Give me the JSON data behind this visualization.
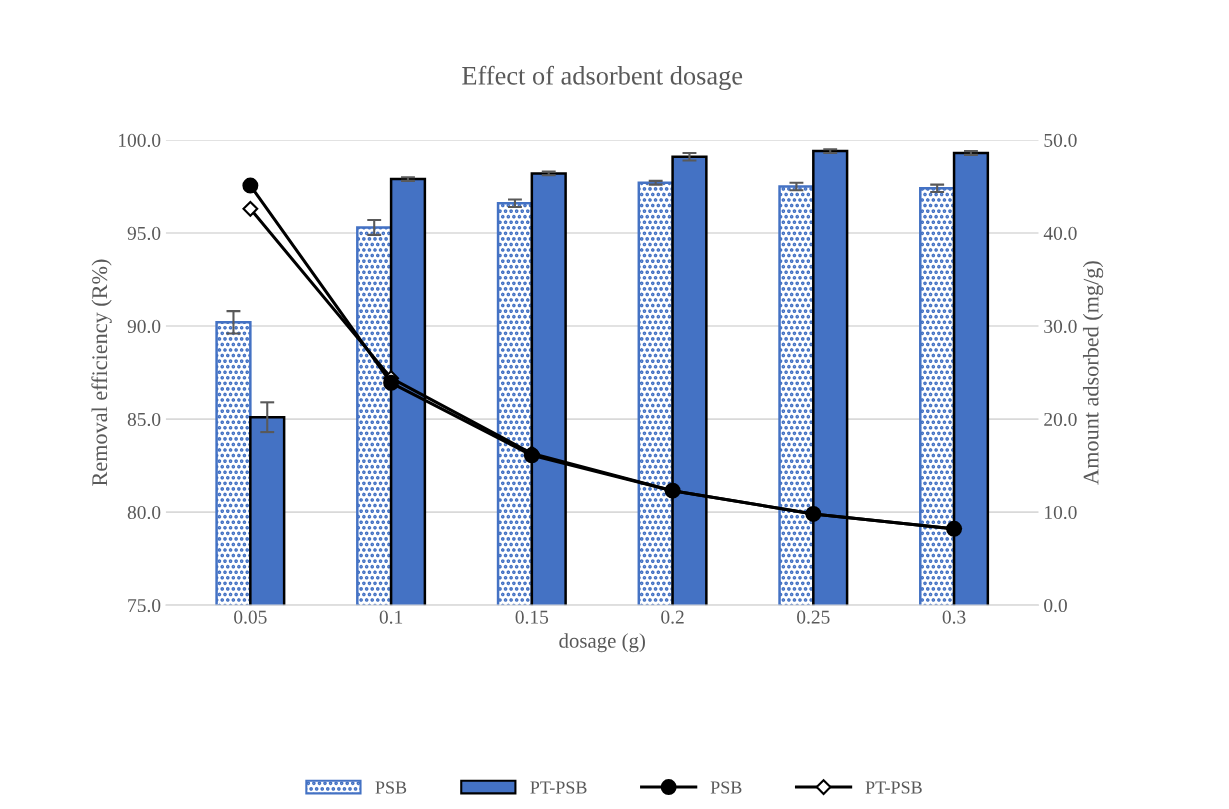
{
  "chart_data": {
    "type": "bar",
    "title": "Effect of adsorbent dosage",
    "xlabel": "dosage (g)",
    "ylabel": "Removal efficiency (R%)",
    "y2label": "Amount adsorbed (mg/g)",
    "categories": [
      "0.05",
      "0.1",
      "0.15",
      "0.2",
      "0.25",
      "0.3"
    ],
    "series": [
      {
        "name": "PSB",
        "color": "#4472c4",
        "values": [
          90.2,
          95.3,
          96.6,
          97.7,
          97.5,
          97.4
        ],
        "errors": [
          0.6,
          0.4,
          0.2,
          0.1,
          0.2,
          0.2
        ]
      },
      {
        "name": "PT-PSB",
        "color": "#4472c4",
        "values": [
          85.1,
          97.9,
          98.2,
          99.1,
          99.4,
          99.3
        ],
        "errors": [
          0.8,
          0.1,
          0.1,
          0.2,
          0.1,
          0.1
        ]
      },
      {
        "name": "PSB",
        "type": "line",
        "axis": "y2",
        "color": "#000000",
        "marker": "circle",
        "values": [
          45.1,
          23.9,
          16.1,
          12.3,
          9.8,
          8.2
        ]
      },
      {
        "name": "PT-PSB",
        "type": "line",
        "axis": "y2",
        "color": "#000000",
        "marker": "diamond",
        "values": [
          42.6,
          24.4,
          16.3,
          12.3,
          9.8,
          8.2
        ]
      }
    ],
    "ylim": [
      75,
      100
    ],
    "yticks": [
      {
        "value": 75,
        "label": "75.0"
      },
      {
        "value": 80,
        "label": "80.0"
      },
      {
        "value": 85,
        "label": "85.0"
      },
      {
        "value": 90,
        "label": "90.0"
      },
      {
        "value": 95,
        "label": "95.0"
      },
      {
        "value": 100,
        "label": "100.0"
      }
    ],
    "y2lim": [
      0,
      50
    ],
    "y2ticks": [
      {
        "value": 0,
        "label": "0.0"
      },
      {
        "value": 10,
        "label": "10.0"
      },
      {
        "value": 20,
        "label": "20.0"
      },
      {
        "value": 30,
        "label": "30.0"
      },
      {
        "value": 40,
        "label": "40.0"
      },
      {
        "value": 50,
        "label": "50.0"
      }
    ],
    "grid": "y",
    "legend": "bottom"
  }
}
